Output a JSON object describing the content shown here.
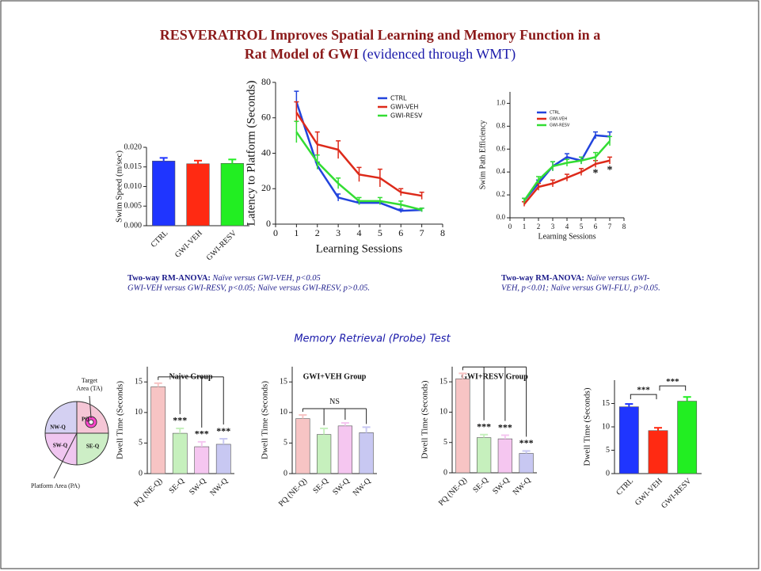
{
  "title": "RESVERATROL Improves Spatial Learning and Memory Function in a",
  "title_line2": "Rat Model of GWI",
  "title_suffix": "(evidenced through WMT)",
  "notes": [
    {
      "bold": "Two-way RM-ANOVA:",
      "line1": "Naïve versus GWI-VEH, p<0.05",
      "line2": "GWI-VEH versus GWI-RESV, p<0.05; Naïve versus GWI-RESV, p>0.05."
    },
    {
      "bold": "Two-way RM-ANOVA:",
      "line1": "Naïve versus GWI-",
      "line2": "VEH, p<0.01; Naïve versus GWI-FLU, p>0.05."
    }
  ],
  "section_title": "Memory Retrieval (Probe) Test",
  "diagram": {
    "target_label_1": "Target",
    "target_label_2": "Area (TA)",
    "quadrants": [
      "PQ",
      "NW-Q",
      "SW-Q",
      "SE-Q"
    ],
    "platform_label": "Platform Area (PA)"
  },
  "chart_data": [
    {
      "type": "bar",
      "y_label": "Swim Speed (m/sec)",
      "categories": [
        "CTRL",
        "GWI-VEH",
        "GWI-RESV"
      ],
      "values": [
        0.0165,
        0.0158,
        0.0159
      ],
      "errors": [
        0.0008,
        0.0008,
        0.001
      ],
      "colors": [
        "#1f35ff",
        "#ff2a12",
        "#22ee22"
      ],
      "ylim": [
        0,
        0.02
      ],
      "yticks": [
        {
          "value": 0,
          "label": "0.000"
        },
        {
          "value": 0.005,
          "label": "0.005"
        },
        {
          "value": 0.01,
          "label": "0.010"
        },
        {
          "value": 0.015,
          "label": "0.015"
        },
        {
          "value": 0.02,
          "label": "0.020"
        }
      ]
    },
    {
      "type": "line",
      "x_label": "Learning Sessions",
      "y_label": "Latency to Platform (Seconds)",
      "x": [
        1,
        2,
        3,
        4,
        5,
        6,
        7
      ],
      "xlim": [
        0,
        8
      ],
      "xticks": [
        0,
        1,
        2,
        3,
        4,
        5,
        6,
        7,
        8
      ],
      "ylim": [
        0,
        80
      ],
      "yticks": [
        0,
        20,
        40,
        60,
        80
      ],
      "legend": "upper right",
      "series": [
        {
          "name": "CTRL",
          "color": "#2244dd",
          "values": [
            69,
            33,
            15,
            12,
            12,
            7.5,
            8
          ],
          "errors": [
            6,
            2,
            2,
            1,
            1,
            1,
            1
          ]
        },
        {
          "name": "GWI-VEH",
          "color": "#dd2a1a",
          "values": [
            63,
            45,
            42,
            28,
            26,
            18,
            16
          ],
          "errors": [
            6,
            7,
            5,
            4,
            5,
            2,
            2
          ]
        },
        {
          "name": "GWI-RESV",
          "color": "#33dd33",
          "values": [
            52,
            35,
            23,
            13,
            13,
            11,
            8
          ],
          "errors": [
            6,
            4,
            3,
            2,
            2,
            2,
            1
          ]
        }
      ]
    },
    {
      "type": "line",
      "x_label": "Learning Sessions",
      "y_label": "Swim Path Efficiency",
      "x": [
        1,
        2,
        3,
        4,
        5,
        6,
        7
      ],
      "xlim": [
        0,
        8
      ],
      "xticks": [
        0,
        1,
        2,
        3,
        4,
        5,
        6,
        7,
        8
      ],
      "ylim": [
        0,
        1.1
      ],
      "yticks": [
        {
          "value": 0,
          "label": "0.0"
        },
        {
          "value": 0.2,
          "label": "0.2"
        },
        {
          "value": 0.4,
          "label": "0.4"
        },
        {
          "value": 0.6,
          "label": "0.6"
        },
        {
          "value": 0.8,
          "label": "0.8"
        },
        {
          "value": 1,
          "label": "1.0"
        }
      ],
      "legend": "upper left",
      "series": [
        {
          "name": "CTRL",
          "color": "#2244dd",
          "values": [
            0.15,
            0.3,
            0.45,
            0.53,
            0.5,
            0.72,
            0.71
          ],
          "errors": [
            0.02,
            0.03,
            0.04,
            0.03,
            0.03,
            0.03,
            0.04
          ]
        },
        {
          "name": "GWI-VEH",
          "color": "#dd2a1a",
          "values": [
            0.12,
            0.27,
            0.3,
            0.35,
            0.4,
            0.47,
            0.5
          ],
          "errors": [
            0.02,
            0.03,
            0.03,
            0.03,
            0.03,
            0.03,
            0.03
          ],
          "significance": [
            null,
            null,
            null,
            null,
            null,
            "*",
            "*"
          ]
        },
        {
          "name": "GWI-RESV",
          "color": "#33dd33",
          "values": [
            0.15,
            0.33,
            0.45,
            0.48,
            0.5,
            0.53,
            0.67
          ],
          "errors": [
            0.02,
            0.03,
            0.04,
            0.03,
            0.03,
            0.04,
            0.04
          ]
        }
      ]
    },
    {
      "type": "bar",
      "title": "Naive Group",
      "y_label": "Dwell Time (Seconds)",
      "categories": [
        "PQ (NE-Q)",
        "SE-Q",
        "SW-Q",
        "NW-Q"
      ],
      "values": [
        14.2,
        6.6,
        4.4,
        4.8
      ],
      "errors": [
        0.6,
        0.8,
        0.8,
        0.9
      ],
      "colors": [
        "#f7c4c4",
        "#c6f0bd",
        "#f5c6f0",
        "#c8c8f2"
      ],
      "ylim": [
        0,
        17.5
      ],
      "yticks": [
        0,
        5,
        10,
        15
      ],
      "comb": true,
      "annotations": [
        null,
        "***",
        "***",
        "***"
      ]
    },
    {
      "type": "bar",
      "title": "GWI+VEH Group",
      "y_label": "Dwell Time (Seconds)",
      "categories": [
        "PQ (NE-Q)",
        "SE-Q",
        "SW-Q",
        "NW-Q"
      ],
      "values": [
        9.0,
        6.4,
        7.8,
        6.7
      ],
      "errors": [
        0.6,
        1.0,
        0.5,
        0.9
      ],
      "colors": [
        "#f7c4c4",
        "#c6f0bd",
        "#f5c6f0",
        "#c8c8f2"
      ],
      "ylim": [
        0,
        17.5
      ],
      "yticks": [
        0,
        5,
        10,
        15
      ],
      "comb": true,
      "comb_label": "NS"
    },
    {
      "type": "bar",
      "title": "GWI+RESV Group",
      "y_label": "Dwell Time (Seconds)",
      "categories": [
        "PQ (NE-Q)",
        "SE-Q",
        "SW-Q",
        "NW-Q"
      ],
      "values": [
        15.5,
        5.8,
        5.6,
        3.2
      ],
      "errors": [
        0.9,
        0.5,
        0.6,
        0.4
      ],
      "colors": [
        "#f7c4c4",
        "#c6f0bd",
        "#f5c6f0",
        "#c8c8f2"
      ],
      "ylim": [
        0,
        17.5
      ],
      "yticks": [
        0,
        5,
        10,
        15
      ],
      "comb": true,
      "annotations": [
        null,
        "***",
        "***",
        "***"
      ]
    },
    {
      "type": "bar",
      "y_label": "Dwell Time (Seconds)",
      "categories": [
        "CTRL",
        "GWI-VEH",
        "GWI-RESV"
      ],
      "values": [
        14.3,
        9.2,
        15.5
      ],
      "errors": [
        0.6,
        0.6,
        0.9
      ],
      "colors": [
        "#1f35ff",
        "#ff2a12",
        "#22ee22"
      ],
      "ylim": [
        0,
        20
      ],
      "yticks": [
        0,
        5,
        10,
        15
      ],
      "brackets": [
        {
          "from": "CTRL",
          "to": "GWI-VEH",
          "label": "***"
        },
        {
          "from": "GWI-VEH",
          "to": "GWI-RESV",
          "label": "***"
        }
      ]
    }
  ]
}
